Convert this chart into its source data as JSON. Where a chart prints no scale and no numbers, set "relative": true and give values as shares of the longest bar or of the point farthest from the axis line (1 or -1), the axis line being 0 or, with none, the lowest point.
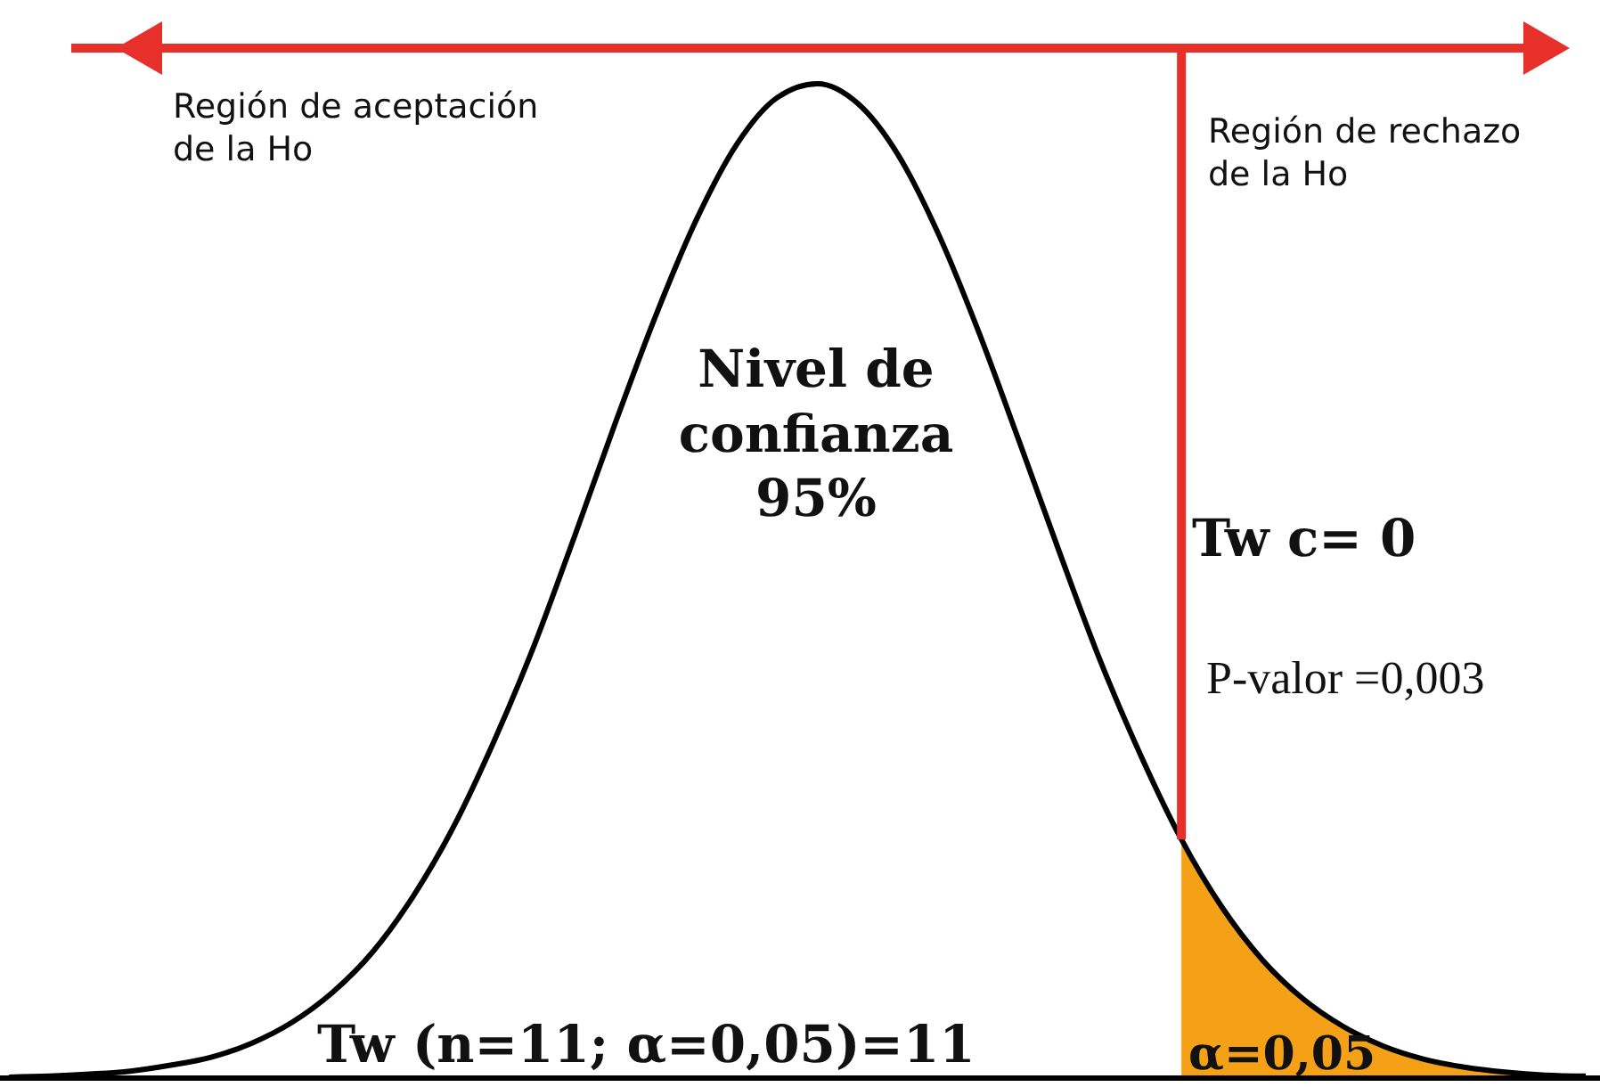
{
  "chart_data": {
    "type": "line",
    "relative": true,
    "categories": [
      null,
      null,
      null,
      null,
      null,
      null,
      null,
      null,
      null,
      null,
      null,
      null,
      null,
      null,
      null,
      null,
      null,
      null,
      null,
      null,
      null,
      null,
      null,
      null,
      null,
      null,
      null,
      null,
      null,
      null,
      null,
      null,
      null,
      null,
      null,
      null,
      null,
      null,
      null,
      null
    ],
    "series": [
      {
        "type": "area",
        "color": "#f4a118",
        "values": [
          null,
          null,
          null,
          null,
          null,
          null,
          null,
          null,
          null,
          null,
          null,
          null,
          null,
          null,
          null,
          null,
          null,
          null,
          null,
          null,
          null,
          null,
          null,
          null,
          null,
          null,
          null,
          null,
          null,
          0.24,
          0.172,
          0.119,
          0.08,
          0.052,
          0.032,
          0.019,
          0.011,
          0.006,
          0.003,
          0.002
        ]
      },
      {
        "type": "line",
        "color": "#000000",
        "values": [
          0.001,
          0.002,
          0.004,
          0.007,
          0.013,
          0.021,
          0.035,
          0.056,
          0.086,
          0.127,
          0.183,
          0.253,
          0.339,
          0.436,
          0.546,
          0.659,
          0.767,
          0.863,
          0.939,
          0.986,
          1.0,
          0.98,
          0.928,
          0.848,
          0.749,
          0.639,
          0.527,
          0.419,
          0.324,
          0.24,
          0.172,
          0.119,
          0.08,
          0.052,
          0.032,
          0.019,
          0.011,
          0.006,
          0.003,
          0.002
        ]
      }
    ],
    "annotations": [
      "Región de aceptación\nde la Ho",
      "Región de rechazo\nde la Ho",
      "Nivel de\nconfianza\n95%",
      "Tw c= 0",
      "P-valor =0,003",
      "Tw (n=11; α=0,05)=11",
      "α=0,05"
    ]
  }
}
